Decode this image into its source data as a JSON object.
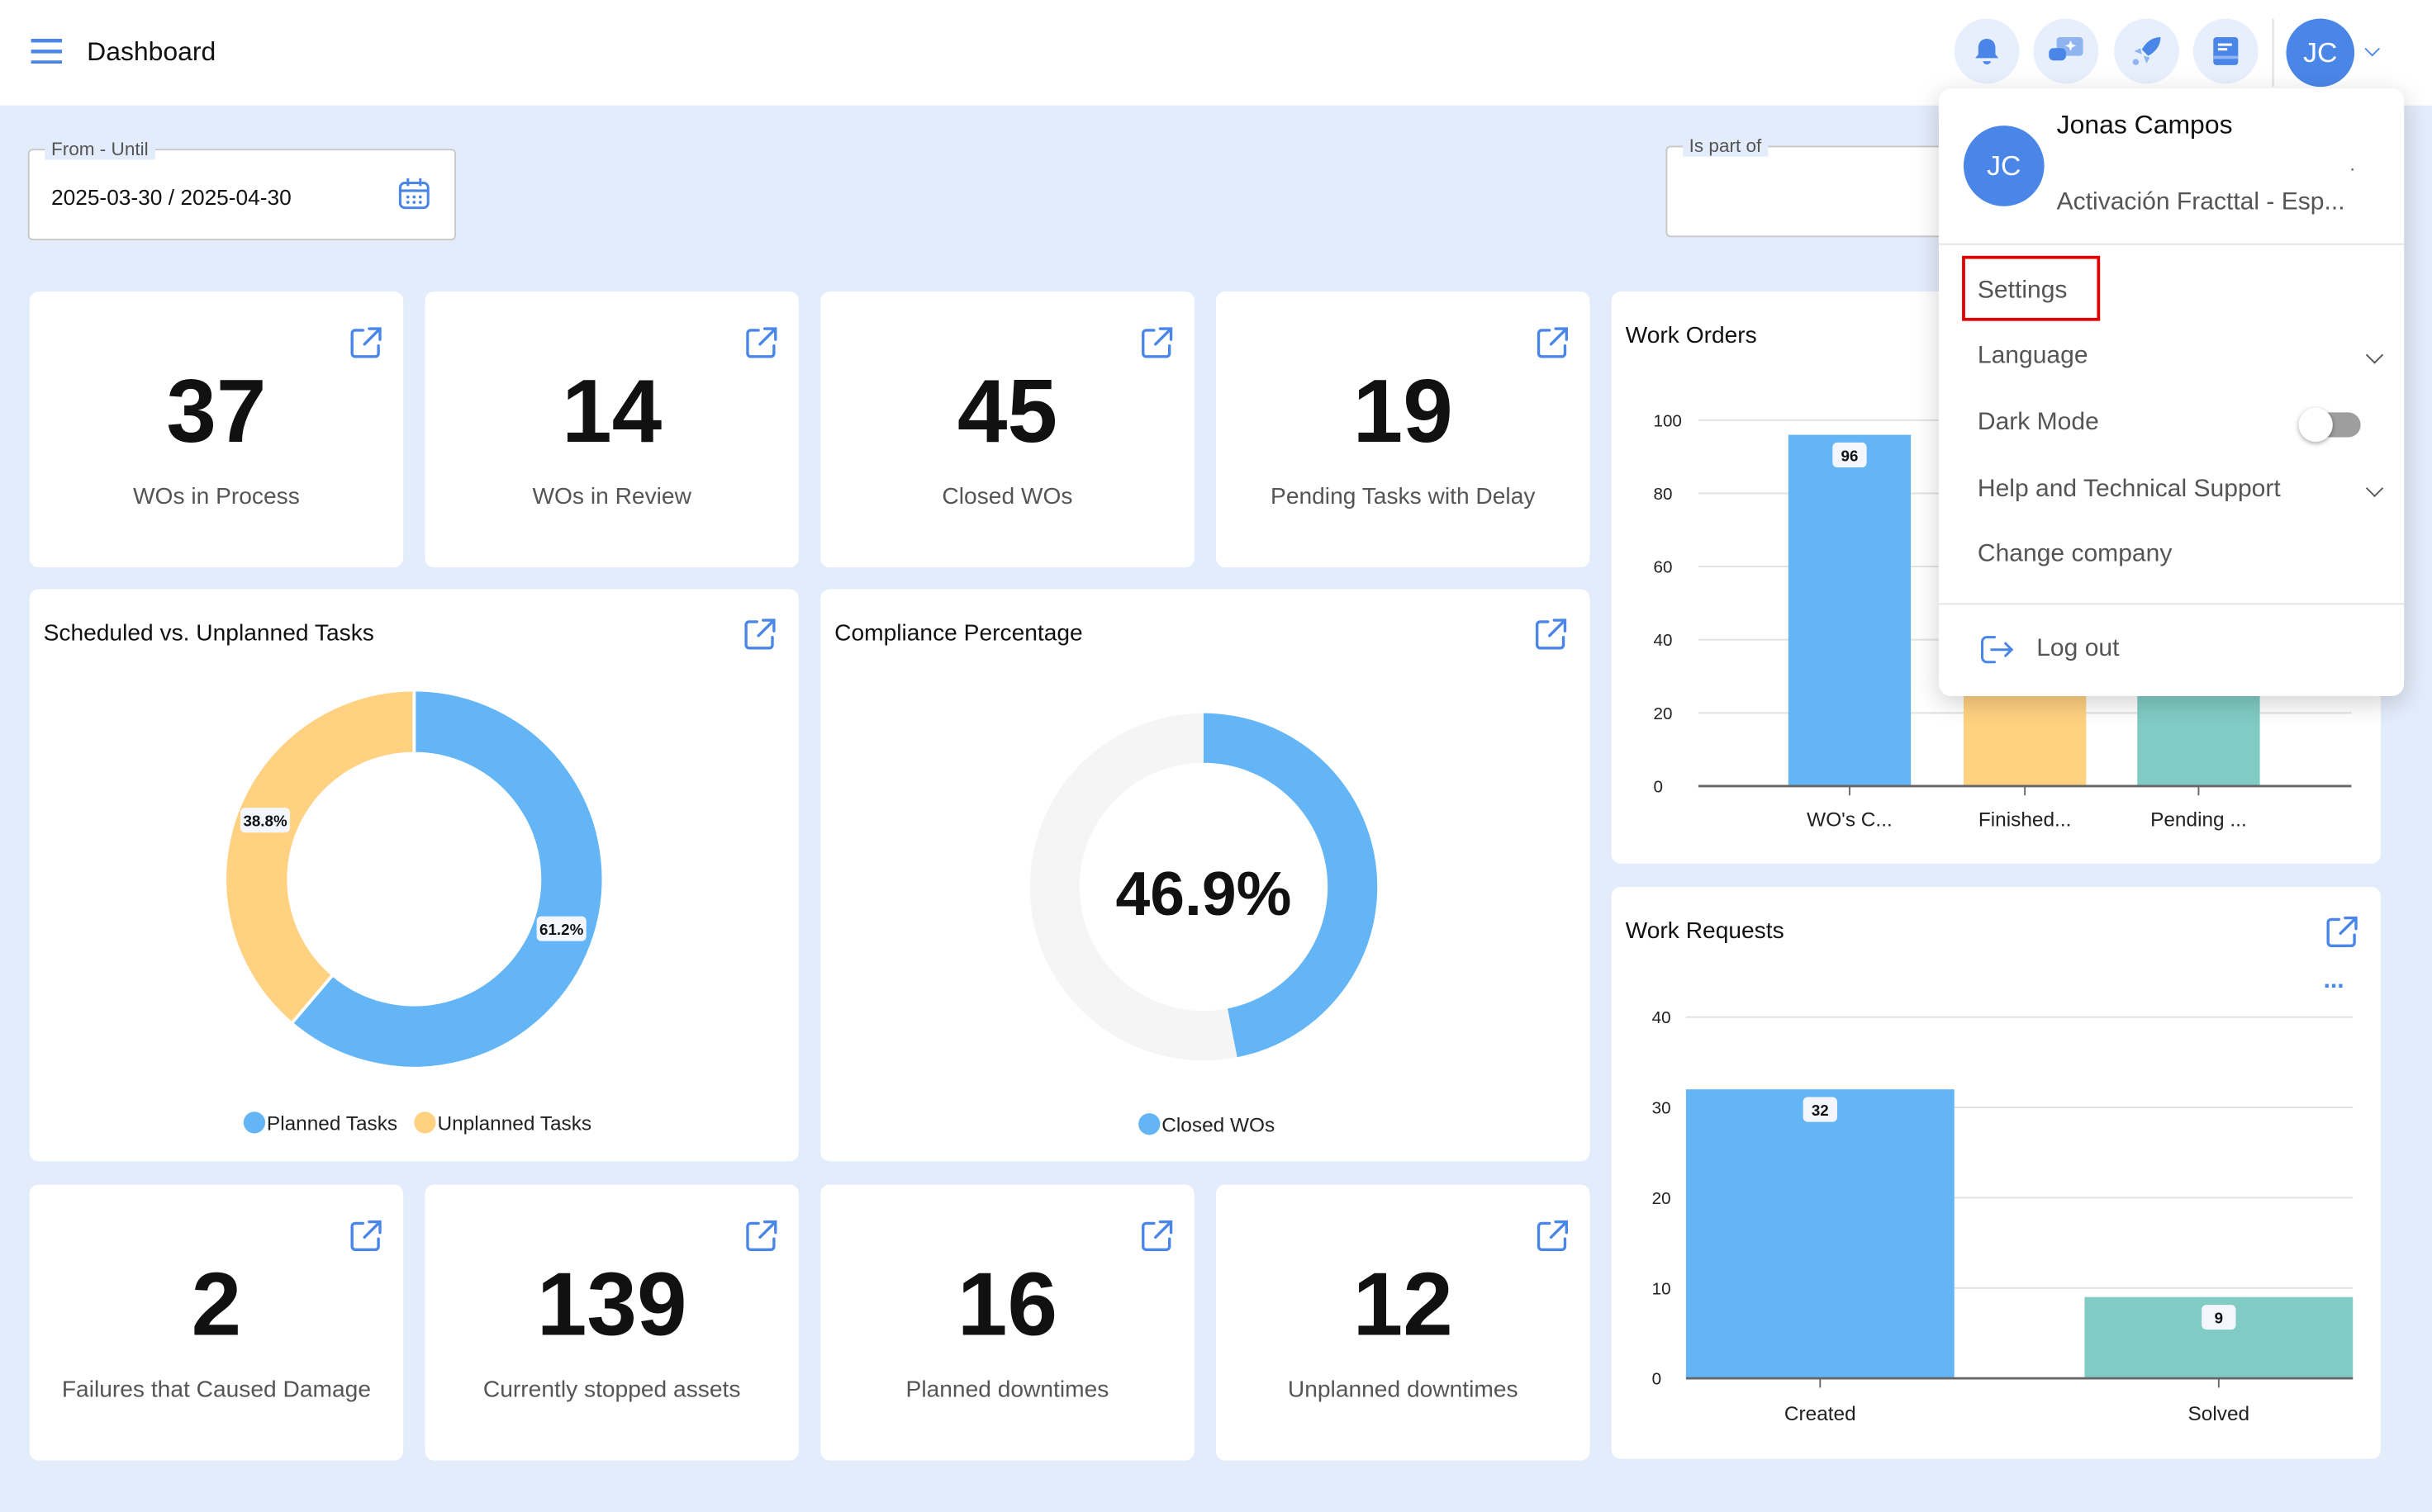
{
  "header": {
    "title": "Dashboard",
    "icons": [
      "menu-icon",
      "bell-icon",
      "chat-sparkle-icon",
      "rocket-icon",
      "book-icon"
    ],
    "avatar_initials": "JC"
  },
  "filters": {
    "date_label": "From - Until",
    "date_value": "2025-03-30 / 2025-04-30",
    "part_of_label": "Is part of",
    "part_of_value": ""
  },
  "kpis_top": [
    {
      "value": "37",
      "label": "WOs in Process"
    },
    {
      "value": "14",
      "label": "WOs in Review"
    },
    {
      "value": "45",
      "label": "Closed WOs"
    },
    {
      "value": "19",
      "label": "Pending Tasks with Delay"
    }
  ],
  "kpis_bottom": [
    {
      "value": "2",
      "label": "Failures that Caused Damage"
    },
    {
      "value": "139",
      "label": "Currently stopped assets"
    },
    {
      "value": "16",
      "label": "Planned downtimes"
    },
    {
      "value": "12",
      "label": "Unplanned downtimes"
    }
  ],
  "user_menu": {
    "name": "Jonas Campos",
    "initials": "JC",
    "dot": ".",
    "company": "Activación Fracttal - Esp...",
    "items": {
      "settings": "Settings",
      "language": "Language",
      "dark_mode": "Dark Mode",
      "help": "Help and Technical Support",
      "change_company": "Change company",
      "logout": "Log out"
    },
    "dark_mode_on": false
  },
  "colors": {
    "blue": "#64b5f6",
    "yellow": "#ffd180",
    "teal": "#80cbc4",
    "accent": "#4a86e8",
    "highlight": "#e00000"
  },
  "chart_data": [
    {
      "type": "pie",
      "title": "Scheduled vs. Unplanned Tasks",
      "donut": true,
      "labels": [
        "Planned Tasks",
        "Unplanned Tasks"
      ],
      "values": [
        61.2,
        38.8
      ],
      "data_labels": [
        "61.2%",
        "38.8%"
      ],
      "legend": "bottom"
    },
    {
      "type": "pie",
      "title": "Compliance Percentage",
      "donut": true,
      "labels": [
        "Closed WOs"
      ],
      "values": [
        46.9
      ],
      "center_label": "46.9%",
      "legend": "bottom"
    },
    {
      "type": "bar",
      "title": "Work Orders",
      "categories": [
        "WO's C...",
        "Finished...",
        "Pending ..."
      ],
      "values": [
        96,
        30,
        30
      ],
      "data_labels": [
        "96",
        "",
        ""
      ],
      "ylim": [
        0,
        100
      ],
      "yticks": [
        "0",
        "20",
        "40",
        "60",
        "80",
        "100"
      ],
      "grid": true
    },
    {
      "type": "bar",
      "title": "Work Requests",
      "categories": [
        "Created",
        "Solved"
      ],
      "values": [
        32,
        9
      ],
      "data_labels": [
        "32",
        "9"
      ],
      "ylim": [
        0,
        40
      ],
      "yticks": [
        "0",
        "10",
        "20",
        "30",
        "40"
      ],
      "grid": true,
      "more": "..."
    }
  ]
}
